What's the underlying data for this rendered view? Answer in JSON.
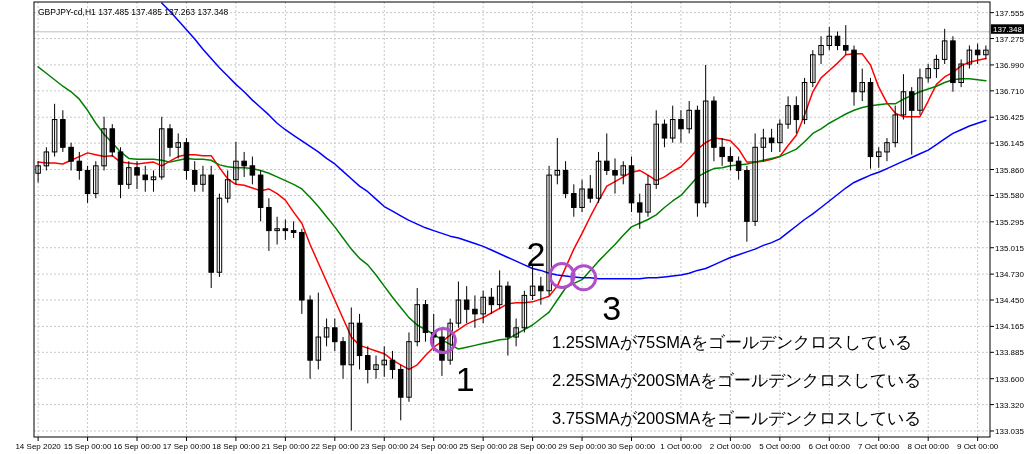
{
  "chart_data": {
    "type": "candlestick",
    "title": "GBPJPY-cd,H1  137.485 137.485 137.263 137.348",
    "categories": [
      "14 Sep 2020",
      null,
      null,
      null,
      null,
      null,
      "15 Sep 00:00",
      null,
      null,
      null,
      null,
      null,
      "16 Sep 00:00",
      null,
      null,
      null,
      null,
      null,
      "17 Sep 00:00",
      null,
      null,
      null,
      null,
      null,
      "18 Sep 00:00",
      null,
      null,
      null,
      null,
      null,
      "21 Sep 00:00",
      null,
      null,
      null,
      null,
      null,
      "22 Sep 00:00",
      null,
      null,
      null,
      null,
      null,
      "23 Sep 00:00",
      null,
      null,
      null,
      null,
      null,
      "24 Sep 00:00",
      null,
      null,
      null,
      null,
      null,
      "25 Sep 00:00",
      null,
      null,
      null,
      null,
      null,
      "28 Sep 00:00",
      null,
      null,
      null,
      null,
      null,
      "29 Sep 00:00",
      null,
      null,
      null,
      null,
      null,
      "30 Sep 00:00",
      null,
      null,
      null,
      null,
      null,
      "1 Oct 00:00",
      null,
      null,
      null,
      null,
      null,
      "2 Oct 00:00",
      null,
      null,
      null,
      null,
      null,
      "5 Oct 00:00",
      null,
      null,
      null,
      null,
      null,
      "6 Oct 00:00",
      null,
      null,
      null,
      null,
      null,
      "7 Oct 00:00",
      null,
      null,
      null,
      null,
      null,
      "8 Oct 00:00",
      null,
      null,
      null,
      null,
      null,
      "9 Oct 00:00",
      null
    ],
    "ohlc": [
      [
        135.82,
        135.95,
        135.72,
        135.9
      ],
      [
        135.9,
        136.1,
        135.85,
        136.05
      ],
      [
        136.05,
        136.57,
        136.0,
        136.4
      ],
      [
        136.4,
        136.5,
        136.05,
        136.1
      ],
      [
        136.1,
        136.15,
        135.85,
        135.95
      ],
      [
        135.95,
        136.05,
        135.75,
        135.85
      ],
      [
        135.85,
        135.9,
        135.5,
        135.6
      ],
      [
        135.6,
        135.95,
        135.55,
        135.9
      ],
      [
        135.9,
        136.43,
        135.85,
        136.3
      ],
      [
        136.3,
        136.35,
        136.0,
        136.05
      ],
      [
        136.05,
        136.1,
        135.55,
        135.7
      ],
      [
        135.7,
        135.95,
        135.65,
        135.88
      ],
      [
        135.88,
        135.95,
        135.65,
        135.8
      ],
      [
        135.8,
        135.9,
        135.62,
        135.75
      ],
      [
        135.75,
        135.85,
        135.62,
        135.78
      ],
      [
        135.78,
        136.43,
        135.75,
        136.3
      ],
      [
        136.3,
        136.35,
        136.0,
        136.1
      ],
      [
        136.1,
        136.25,
        135.98,
        136.15
      ],
      [
        136.15,
        136.2,
        135.75,
        135.85
      ],
      [
        135.85,
        135.95,
        135.62,
        135.7
      ],
      [
        135.7,
        135.9,
        135.62,
        135.8
      ],
      [
        135.8,
        135.9,
        134.58,
        134.75
      ],
      [
        134.75,
        135.6,
        134.7,
        135.55
      ],
      [
        135.55,
        135.85,
        135.5,
        135.75
      ],
      [
        135.75,
        136.16,
        135.7,
        135.95
      ],
      [
        135.95,
        136.05,
        135.78,
        135.9
      ],
      [
        135.9,
        136.0,
        135.7,
        135.8
      ],
      [
        135.8,
        135.85,
        135.3,
        135.45
      ],
      [
        135.45,
        135.55,
        134.98,
        135.2
      ],
      [
        135.2,
        135.35,
        135.05,
        135.22
      ],
      [
        135.22,
        135.32,
        135.1,
        135.2
      ],
      [
        135.2,
        135.3,
        135.12,
        135.18
      ],
      [
        135.18,
        135.22,
        134.3,
        134.45
      ],
      [
        134.45,
        134.5,
        133.6,
        133.8
      ],
      [
        133.8,
        134.53,
        133.7,
        134.05
      ],
      [
        134.05,
        134.25,
        133.95,
        134.15
      ],
      [
        134.15,
        134.25,
        133.9,
        134.0
      ],
      [
        134.0,
        134.05,
        133.6,
        133.75
      ],
      [
        133.75,
        134.37,
        133.04,
        134.2
      ],
      [
        134.2,
        134.3,
        133.7,
        133.85
      ],
      [
        133.85,
        133.95,
        133.55,
        133.7
      ],
      [
        133.7,
        133.85,
        133.6,
        133.75
      ],
      [
        133.75,
        133.95,
        133.62,
        133.8
      ],
      [
        133.8,
        133.9,
        133.6,
        133.7
      ],
      [
        133.7,
        133.75,
        133.15,
        133.4
      ],
      [
        133.4,
        134.1,
        133.35,
        134.0
      ],
      [
        134.0,
        134.58,
        133.95,
        134.4
      ],
      [
        134.4,
        134.45,
        134.0,
        134.1
      ],
      [
        134.1,
        134.3,
        133.9,
        134.05
      ],
      [
        134.05,
        134.15,
        133.63,
        133.8
      ],
      [
        133.8,
        134.25,
        133.75,
        134.2
      ],
      [
        134.2,
        134.65,
        134.15,
        134.45
      ],
      [
        134.45,
        134.6,
        134.2,
        134.35
      ],
      [
        134.35,
        134.5,
        134.15,
        134.3
      ],
      [
        134.3,
        134.55,
        134.2,
        134.48
      ],
      [
        134.48,
        134.58,
        134.3,
        134.4
      ],
      [
        134.4,
        134.77,
        134.35,
        134.6
      ],
      [
        134.6,
        134.65,
        133.85,
        134.05
      ],
      [
        134.05,
        134.25,
        133.95,
        134.15
      ],
      [
        134.15,
        134.55,
        134.1,
        134.5
      ],
      [
        134.5,
        134.82,
        134.45,
        134.6
      ],
      [
        134.6,
        134.7,
        134.4,
        134.55
      ],
      [
        134.55,
        135.9,
        134.5,
        135.8
      ],
      [
        135.8,
        136.2,
        135.7,
        135.85
      ],
      [
        135.85,
        135.95,
        135.55,
        135.6
      ],
      [
        135.6,
        135.7,
        135.35,
        135.45
      ],
      [
        135.45,
        135.75,
        135.4,
        135.65
      ],
      [
        135.65,
        135.8,
        135.5,
        135.55
      ],
      [
        135.55,
        136.05,
        135.5,
        135.95
      ],
      [
        135.95,
        136.25,
        135.8,
        135.85
      ],
      [
        135.85,
        135.98,
        135.6,
        135.8
      ],
      [
        135.8,
        135.95,
        135.7,
        135.9
      ],
      [
        135.9,
        136.0,
        135.4,
        135.5
      ],
      [
        135.5,
        135.6,
        135.22,
        135.4
      ],
      [
        135.4,
        135.8,
        135.35,
        135.7
      ],
      [
        135.7,
        136.5,
        135.65,
        136.35
      ],
      [
        136.35,
        136.4,
        136.1,
        136.2
      ],
      [
        136.2,
        136.55,
        136.15,
        136.4
      ],
      [
        136.4,
        136.5,
        136.15,
        136.3
      ],
      [
        136.3,
        136.6,
        136.25,
        136.5
      ],
      [
        136.5,
        136.55,
        135.35,
        135.5
      ],
      [
        135.5,
        136.99,
        135.45,
        136.6
      ],
      [
        136.6,
        136.65,
        135.95,
        136.1
      ],
      [
        136.1,
        136.2,
        135.9,
        136.0
      ],
      [
        136.0,
        136.1,
        135.85,
        135.95
      ],
      [
        135.95,
        136.0,
        135.75,
        135.85
      ],
      [
        135.85,
        135.9,
        135.08,
        135.3
      ],
      [
        135.3,
        136.25,
        135.25,
        136.1
      ],
      [
        136.1,
        136.3,
        135.95,
        136.2
      ],
      [
        136.2,
        136.3,
        136.05,
        136.15
      ],
      [
        136.15,
        136.4,
        136.05,
        136.35
      ],
      [
        136.35,
        136.65,
        136.3,
        136.55
      ],
      [
        136.55,
        136.65,
        136.25,
        136.4
      ],
      [
        136.4,
        136.85,
        136.35,
        136.8
      ],
      [
        136.8,
        137.15,
        136.75,
        137.1
      ],
      [
        137.1,
        137.3,
        137.0,
        137.2
      ],
      [
        137.2,
        137.4,
        137.15,
        137.3
      ],
      [
        137.3,
        137.35,
        137.15,
        137.2
      ],
      [
        137.2,
        137.42,
        137.1,
        137.15
      ],
      [
        137.15,
        137.2,
        136.55,
        136.7
      ],
      [
        136.7,
        136.95,
        136.6,
        136.8
      ],
      [
        136.8,
        136.85,
        135.87,
        136.0
      ],
      [
        136.0,
        136.1,
        135.88,
        136.05
      ],
      [
        136.05,
        136.2,
        135.95,
        136.15
      ],
      [
        136.15,
        136.55,
        136.1,
        136.45
      ],
      [
        136.45,
        136.89,
        136.4,
        136.7
      ],
      [
        136.7,
        136.75,
        136.02,
        136.5
      ],
      [
        136.5,
        136.95,
        136.45,
        136.85
      ],
      [
        136.85,
        137.0,
        136.8,
        136.95
      ],
      [
        136.95,
        137.1,
        136.85,
        137.05
      ],
      [
        137.05,
        137.38,
        137.0,
        137.25
      ],
      [
        137.25,
        137.3,
        136.7,
        136.8
      ],
      [
        136.8,
        137.05,
        136.75,
        137.0
      ],
      [
        137.0,
        137.2,
        136.95,
        137.15
      ],
      [
        137.15,
        137.22,
        137.0,
        137.1
      ],
      [
        137.1,
        137.2,
        137.05,
        137.15
      ]
    ],
    "series": [
      {
        "type": "line",
        "color": "#ff0000",
        "values": [
          135.94,
          135.93,
          135.93,
          135.92,
          135.96,
          136.0,
          136.04,
          136.02,
          136.0,
          136.01,
          135.94,
          135.93,
          135.92,
          135.93,
          135.94,
          135.9,
          135.95,
          136.0,
          136.02,
          136.02,
          136.01,
          136.01,
          135.88,
          135.76,
          135.7,
          135.69,
          135.66,
          135.63,
          135.65,
          135.6,
          135.53,
          135.4,
          135.28,
          135.05,
          134.85,
          134.65,
          134.45,
          134.25,
          134.05,
          133.96,
          133.93,
          133.9,
          133.87,
          133.8,
          133.75,
          133.7,
          133.75,
          133.85,
          133.94,
          134.0,
          134.07,
          134.13,
          134.19,
          134.23,
          134.26,
          134.31,
          134.36,
          134.41,
          134.42,
          134.42,
          134.43,
          134.46,
          134.49,
          134.6,
          134.8,
          135.0,
          135.17,
          135.35,
          135.52,
          135.68,
          135.73,
          135.78,
          135.83,
          135.85,
          135.8,
          135.74,
          135.78,
          135.84,
          135.89,
          135.98,
          136.08,
          136.15,
          136.2,
          136.19,
          136.17,
          136.08,
          135.94,
          135.94,
          135.95,
          135.97,
          136.0,
          136.12,
          136.23,
          136.45,
          136.7,
          136.85,
          136.93,
          137.01,
          137.1,
          137.11,
          137.11,
          136.99,
          136.75,
          136.58,
          136.47,
          136.43,
          136.43,
          136.43,
          136.6,
          136.78,
          136.86,
          136.91,
          136.98,
          137.02,
          137.04,
          137.06
        ]
      },
      {
        "type": "line",
        "color": "#008000",
        "values": [
          136.97,
          136.9,
          136.83,
          136.76,
          136.7,
          136.62,
          136.5,
          136.36,
          136.24,
          136.15,
          136.05,
          135.98,
          135.97,
          135.97,
          135.97,
          135.96,
          135.94,
          135.96,
          135.98,
          135.97,
          135.97,
          135.96,
          135.91,
          135.89,
          135.88,
          135.88,
          135.87,
          135.85,
          135.82,
          135.78,
          135.74,
          135.7,
          135.65,
          135.56,
          135.46,
          135.35,
          135.24,
          135.12,
          135.0,
          134.9,
          134.83,
          134.72,
          134.6,
          134.48,
          134.37,
          134.26,
          134.18,
          134.13,
          134.08,
          134.02,
          133.97,
          133.92,
          133.94,
          133.96,
          133.98,
          134.0,
          134.02,
          134.03,
          134.08,
          134.13,
          134.18,
          134.25,
          134.32,
          134.45,
          134.58,
          134.63,
          134.67,
          134.77,
          134.87,
          134.96,
          135.05,
          135.15,
          135.24,
          135.28,
          135.32,
          135.37,
          135.45,
          135.52,
          135.58,
          135.68,
          135.78,
          135.83,
          135.87,
          135.88,
          135.9,
          135.91,
          135.92,
          135.94,
          135.96,
          135.98,
          136.0,
          136.04,
          136.08,
          136.16,
          136.25,
          136.3,
          136.36,
          136.41,
          136.46,
          136.5,
          136.53,
          136.55,
          136.56,
          136.57,
          136.57,
          136.62,
          136.66,
          136.7,
          136.73,
          136.76,
          136.8,
          136.83,
          136.84,
          136.84,
          136.83,
          136.82
        ]
      },
      {
        "type": "line",
        "color": "#0000ff",
        "values": [
          null,
          null,
          null,
          null,
          null,
          null,
          null,
          null,
          null,
          null,
          null,
          null,
          null,
          null,
          null,
          137.66,
          137.57,
          137.47,
          137.37,
          137.27,
          137.16,
          137.06,
          136.96,
          136.87,
          136.78,
          136.7,
          136.61,
          136.53,
          136.45,
          136.36,
          136.29,
          136.23,
          136.17,
          136.11,
          136.05,
          135.98,
          135.92,
          135.84,
          135.76,
          135.68,
          135.62,
          135.54,
          135.46,
          135.41,
          135.36,
          135.31,
          135.27,
          135.23,
          135.2,
          135.17,
          135.14,
          135.12,
          135.09,
          135.06,
          135.03,
          134.99,
          134.95,
          134.91,
          134.87,
          134.83,
          134.79,
          134.77,
          134.74,
          134.72,
          134.71,
          134.7,
          134.69,
          134.69,
          134.68,
          134.68,
          134.68,
          134.68,
          134.68,
          134.68,
          134.69,
          134.69,
          134.7,
          134.71,
          134.72,
          134.74,
          134.77,
          134.79,
          134.83,
          134.87,
          134.91,
          134.94,
          134.97,
          135.0,
          135.04,
          135.07,
          135.11,
          135.18,
          135.25,
          135.32,
          135.38,
          135.45,
          135.52,
          135.59,
          135.66,
          135.72,
          135.76,
          135.8,
          135.83,
          135.87,
          135.91,
          135.95,
          135.99,
          136.03,
          136.07,
          136.13,
          136.19,
          136.25,
          136.29,
          136.33,
          136.36,
          136.39
        ]
      }
    ],
    "ylim": [
      132.97,
      137.67
    ],
    "yticks": [
      {
        "value": 137.555,
        "label": "137.555"
      },
      {
        "value": 137.275,
        "label": "137.275"
      },
      {
        "value": 136.99,
        "label": "136.990"
      },
      {
        "value": 136.71,
        "label": "136.710"
      },
      {
        "value": 136.425,
        "label": "136.425"
      },
      {
        "value": 136.145,
        "label": "136.145"
      },
      {
        "value": 135.86,
        "label": "135.860"
      },
      {
        "value": 135.58,
        "label": "135.580"
      },
      {
        "value": 135.295,
        "label": "135.295"
      },
      {
        "value": 135.015,
        "label": "135.015"
      },
      {
        "value": 134.73,
        "label": "134.730"
      },
      {
        "value": 134.45,
        "label": "134.450"
      },
      {
        "value": 134.165,
        "label": "134.165"
      },
      {
        "value": 133.885,
        "label": "133.885"
      },
      {
        "value": 133.6,
        "label": "133.600"
      },
      {
        "value": 133.32,
        "label": "133.320"
      },
      {
        "value": 133.035,
        "label": "133.035"
      }
    ],
    "ref_lines": [
      {
        "axis": "y",
        "value": 137.348,
        "label": "137.348",
        "color": "#c0c0c0"
      }
    ],
    "grid": true,
    "annotations": [
      "1",
      "2",
      "3",
      "1.25SMAが75SMAをゴールデンクロスしている",
      "2.25SMAが200SMAをゴールデンクロスしている",
      "3.75SMAが200SMAをゴールデンクロスしている"
    ]
  }
}
